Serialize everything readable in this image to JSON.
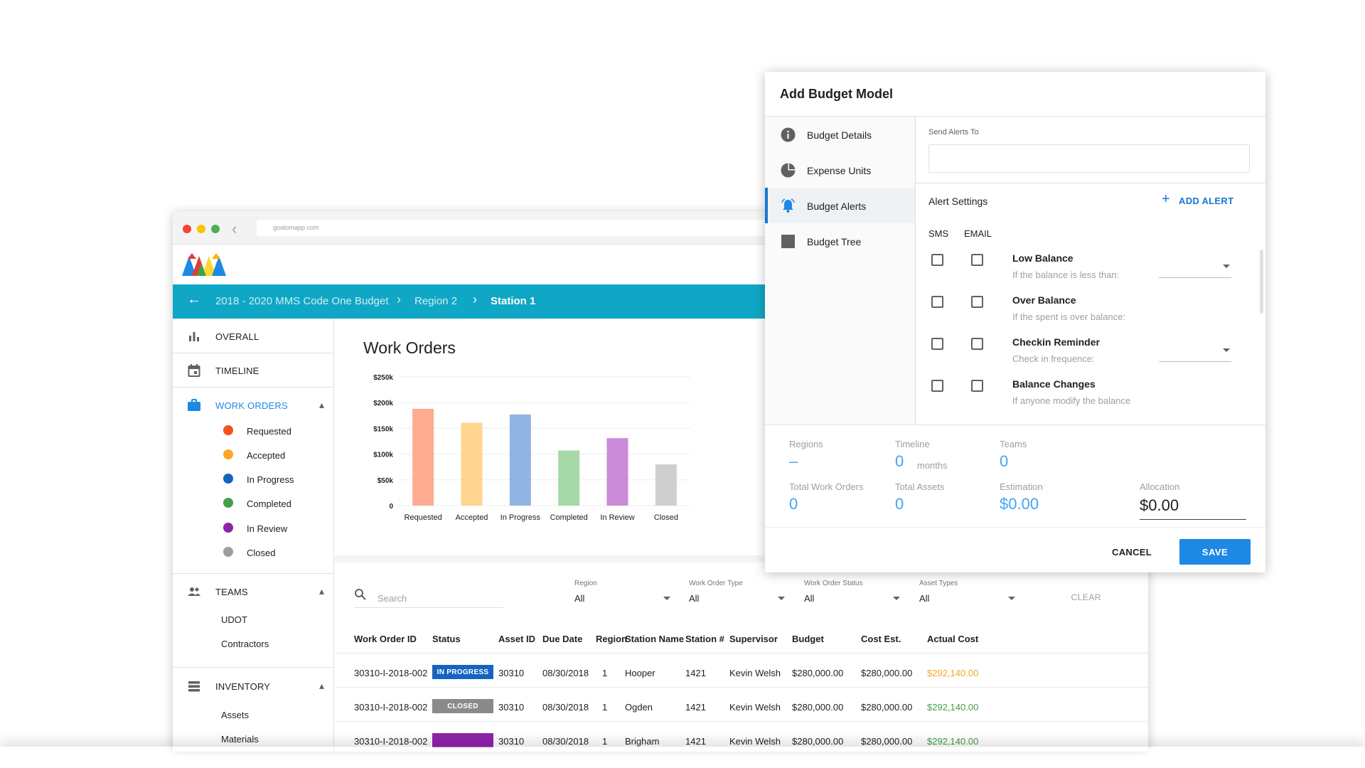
{
  "browser": {
    "url": "goatomapp.com"
  },
  "breadcrumb": {
    "items": [
      "2018 - 2020 MMS Code One Budget",
      "Region 2",
      "Station 1"
    ]
  },
  "sidebar": {
    "overall": "OVERALL",
    "timeline": "TIMELINE",
    "work_orders": "WORK ORDERS",
    "statuses": [
      {
        "label": "Requested",
        "color": "#f4511e"
      },
      {
        "label": "Accepted",
        "color": "#ffa726"
      },
      {
        "label": "In Progress",
        "color": "#1565c0"
      },
      {
        "label": "Completed",
        "color": "#43a047"
      },
      {
        "label": "In Review",
        "color": "#8e24aa"
      },
      {
        "label": "Closed",
        "color": "#9e9e9e"
      }
    ],
    "teams": "TEAMS",
    "team_items": [
      "UDOT",
      "Contractors"
    ],
    "inventory": "INVENTORY",
    "inventory_items": [
      "Assets",
      "Materials"
    ]
  },
  "chart": {
    "title": "Work Orders"
  },
  "chart_data": {
    "type": "bar",
    "title": "Work Orders",
    "categories": [
      "Requested",
      "Accepted",
      "In Progress",
      "Completed",
      "In Review",
      "Closed"
    ],
    "values": [
      188000,
      161000,
      177000,
      107000,
      131000,
      80000
    ],
    "colors": [
      "#ffab91",
      "#ffd590",
      "#90b5e3",
      "#a6d9a8",
      "#cc8ad9",
      "#cfcfcf"
    ],
    "yticks": [
      "0",
      "$50k",
      "$100k",
      "$150k",
      "$200k",
      "$250k"
    ],
    "ylim": [
      0,
      250000
    ],
    "grid": true
  },
  "filters": {
    "search_placeholder": "Search",
    "items": [
      {
        "label": "Region",
        "value": "All"
      },
      {
        "label": "Work Order Type",
        "value": "All"
      },
      {
        "label": "Work Order Status",
        "value": "All"
      },
      {
        "label": "Asset Types",
        "value": "All"
      }
    ],
    "clear": "CLEAR"
  },
  "table": {
    "headers": [
      "Work Order ID",
      "Status",
      "Asset ID",
      "Due Date",
      "Region",
      "Station Name",
      "Station #",
      "Supervisor",
      "Budget",
      "Cost Est.",
      "Actual Cost"
    ],
    "rows": [
      {
        "id": "30310-I-2018-002",
        "status": "IN PROGRESS",
        "status_color": "#1565c0",
        "asset": "30310",
        "due": "08/30/2018",
        "region": "1",
        "station": "Hooper",
        "num": "1421",
        "sup": "Kevin Welsh",
        "budget": "$280,000.00",
        "est": "$280,000.00",
        "actual": "$292,140.00",
        "actual_color": "#f5a623"
      },
      {
        "id": "30310-I-2018-002",
        "status": "CLOSED",
        "status_color": "#8a8a8a",
        "asset": "30310",
        "due": "08/30/2018",
        "region": "1",
        "station": "Ogden",
        "num": "1421",
        "sup": "Kevin Welsh",
        "budget": "$280,000.00",
        "est": "$280,000.00",
        "actual": "$292,140.00",
        "actual_color": "#43a047"
      },
      {
        "id": "30310-I-2018-002",
        "status": "",
        "status_color": "#8e24aa",
        "asset": "30310",
        "due": "08/30/2018",
        "region": "1",
        "station": "Brigham",
        "num": "1421",
        "sup": "Kevin Welsh",
        "budget": "$280,000.00",
        "est": "$280,000.00",
        "actual": "$292,140.00",
        "actual_color": "#43a047"
      }
    ]
  },
  "modal": {
    "title": "Add Budget Model",
    "nav": [
      "Budget Details",
      "Expense Units",
      "Budget Alerts",
      "Budget Tree"
    ],
    "send_alerts_label": "Send Alerts  To",
    "alert_settings": "Alert Settings",
    "add_alert": "ADD ALERT",
    "col_sms": "SMS",
    "col_email": "EMAIL",
    "alerts": [
      {
        "title": "Low Balance",
        "sub": "If the balance is less than:"
      },
      {
        "title": "Over Balance",
        "sub": "If the spent is over balance:"
      },
      {
        "title": "Checkin Reminder",
        "sub": "Check in frequence:"
      },
      {
        "title": "Balance Changes",
        "sub": "If anyone modify the balance"
      }
    ],
    "stats": {
      "regions_label": "Regions",
      "regions_value": "–",
      "timeline_label": "Timeline",
      "timeline_value": "0",
      "timeline_unit": "months",
      "teams_label": "Teams",
      "teams_value": "0",
      "total_wo_label": "Total Work Orders",
      "total_wo_value": "0",
      "total_assets_label": "Total Assets",
      "total_assets_value": "0",
      "estimation_label": "Estimation",
      "estimation_value": "$0.00",
      "allocation_label": "Allocation",
      "allocation_value": "$0.00"
    },
    "cancel": "CANCEL",
    "save": "SAVE"
  }
}
